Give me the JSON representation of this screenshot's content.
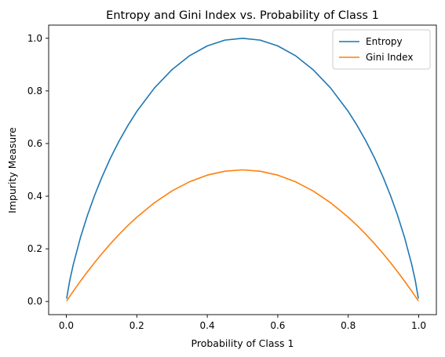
{
  "chart_data": {
    "type": "line",
    "title": "Entropy and Gini Index vs. Probability of Class 1",
    "xlabel": "Probability of Class 1",
    "ylabel": "Impurity Measure",
    "xlim": [
      -0.05,
      1.05
    ],
    "ylim": [
      -0.05,
      1.05
    ],
    "xticks": [
      0.0,
      0.2,
      0.4,
      0.6,
      0.8,
      1.0
    ],
    "xtick_labels": [
      "0.0",
      "0.2",
      "0.4",
      "0.6",
      "0.8",
      "1.0"
    ],
    "yticks": [
      0.0,
      0.2,
      0.4,
      0.6,
      0.8,
      1.0
    ],
    "ytick_labels": [
      "0.0",
      "0.2",
      "0.4",
      "0.6",
      "0.8",
      "1.0"
    ],
    "grid": false,
    "legend": "top-right",
    "x": [
      0.001,
      0.01,
      0.02,
      0.04,
      0.06,
      0.08,
      0.1,
      0.125,
      0.15,
      0.175,
      0.2,
      0.25,
      0.3,
      0.35,
      0.4,
      0.45,
      0.5,
      0.55,
      0.6,
      0.65,
      0.7,
      0.75,
      0.8,
      0.825,
      0.85,
      0.875,
      0.9,
      0.92,
      0.94,
      0.96,
      0.98,
      0.99,
      0.999
    ],
    "series": [
      {
        "name": "Entropy",
        "color": "#1f77b4",
        "values": [
          0.011,
          0.081,
          0.141,
          0.242,
          0.327,
          0.402,
          0.469,
          0.544,
          0.61,
          0.669,
          0.722,
          0.811,
          0.881,
          0.934,
          0.971,
          0.993,
          1.0,
          0.993,
          0.971,
          0.934,
          0.881,
          0.811,
          0.722,
          0.669,
          0.61,
          0.544,
          0.469,
          0.402,
          0.327,
          0.242,
          0.141,
          0.081,
          0.011
        ]
      },
      {
        "name": "Gini Index",
        "color": "#ff7f0e",
        "values": [
          0.002,
          0.0198,
          0.0392,
          0.0768,
          0.1128,
          0.1472,
          0.18,
          0.2188,
          0.255,
          0.2888,
          0.32,
          0.375,
          0.42,
          0.455,
          0.48,
          0.495,
          0.5,
          0.495,
          0.48,
          0.455,
          0.42,
          0.375,
          0.32,
          0.2888,
          0.255,
          0.2188,
          0.18,
          0.1472,
          0.1128,
          0.0768,
          0.0392,
          0.0198,
          0.002
        ]
      }
    ]
  }
}
